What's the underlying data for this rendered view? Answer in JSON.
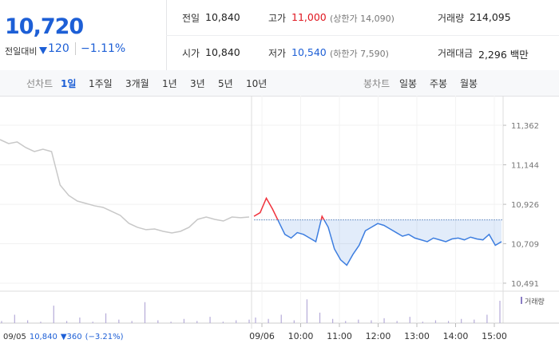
{
  "header": {
    "price": "10,720",
    "change_label": "전일대비",
    "change": "120",
    "change_pct": "−1.11%"
  },
  "info": [
    [
      {
        "label": "전일",
        "value": "10,840"
      },
      {
        "label": "고가",
        "value": "11,000",
        "note": "(상한가 14,090)"
      },
      {
        "label": "거래량",
        "value": "214,095"
      }
    ],
    [
      {
        "label": "시가",
        "value": "10,840"
      },
      {
        "label": "저가",
        "value": "10,540",
        "note": "(하한가 7,590)"
      },
      {
        "label": "거래대금",
        "value": "2,296 백만"
      }
    ]
  ],
  "tabs": {
    "line_label": "선차트",
    "line_tabs": [
      "1일",
      "1주일",
      "3개월",
      "1년",
      "3년",
      "5년",
      "10년"
    ],
    "candle_label": "봉차트",
    "candle_tabs": [
      "일봉",
      "주봉",
      "월봉"
    ]
  },
  "chart_data": {
    "type": "line",
    "reference_value": 10840,
    "ylim": [
      10460,
      11503
    ],
    "yticks": [
      {
        "value": 11362,
        "label": "11,362"
      },
      {
        "value": 11144,
        "label": "11,144"
      },
      {
        "value": 10926,
        "label": "10,926"
      },
      {
        "value": 10709,
        "label": "10,709"
      },
      {
        "value": 10491,
        "label": "10,491"
      }
    ],
    "xticks": [
      "09/06",
      "10:00",
      "11:00",
      "12:00",
      "13:00",
      "14:00",
      "15:00"
    ],
    "series": [
      {
        "name": "09/05",
        "color": "#c8c8c8",
        "values": [
          11283,
          11261,
          11270,
          11239,
          11217,
          11230,
          11217,
          11032,
          10975,
          10944,
          10931,
          10918,
          10909,
          10887,
          10865,
          10821,
          10799,
          10786,
          10790,
          10777,
          10768,
          10777,
          10799,
          10843,
          10856,
          10843,
          10834,
          10856,
          10852,
          10856
        ]
      },
      {
        "name": "09/06",
        "color": "#3d7ee0",
        "up_color": "#f0323c",
        "values": [
          10860,
          10880,
          10960,
          10900,
          10830,
          10760,
          10740,
          10770,
          10760,
          10740,
          10720,
          10860,
          10800,
          10680,
          10620,
          10590,
          10650,
          10700,
          10780,
          10800,
          10820,
          10810,
          10790,
          10770,
          10750,
          10760,
          10740,
          10730,
          10720,
          10740,
          10730,
          10720,
          10735,
          10740,
          10730,
          10745,
          10735,
          10730,
          10760,
          10700,
          10720
        ]
      }
    ],
    "volume": {
      "name": "거래량",
      "color": "#b5abd8",
      "ylim": [
        0,
        40000
      ],
      "prev": [
        3000,
        12000,
        4000,
        2000,
        25000,
        3000,
        8000,
        2000,
        14000,
        5000,
        3000,
        30000,
        4000,
        2000,
        6000,
        3000,
        9000,
        2000,
        4000,
        5000
      ],
      "today": [
        8000,
        6000,
        12000,
        4000,
        34000,
        15000,
        6000,
        3000,
        5000,
        4000,
        7000,
        3000,
        9000,
        2000,
        4000,
        3000,
        6000,
        5000,
        12000,
        32000
      ]
    },
    "footnote": {
      "date": "09/05",
      "close": "10,840",
      "change": "▼360",
      "pct": "(−3.21%)"
    }
  }
}
